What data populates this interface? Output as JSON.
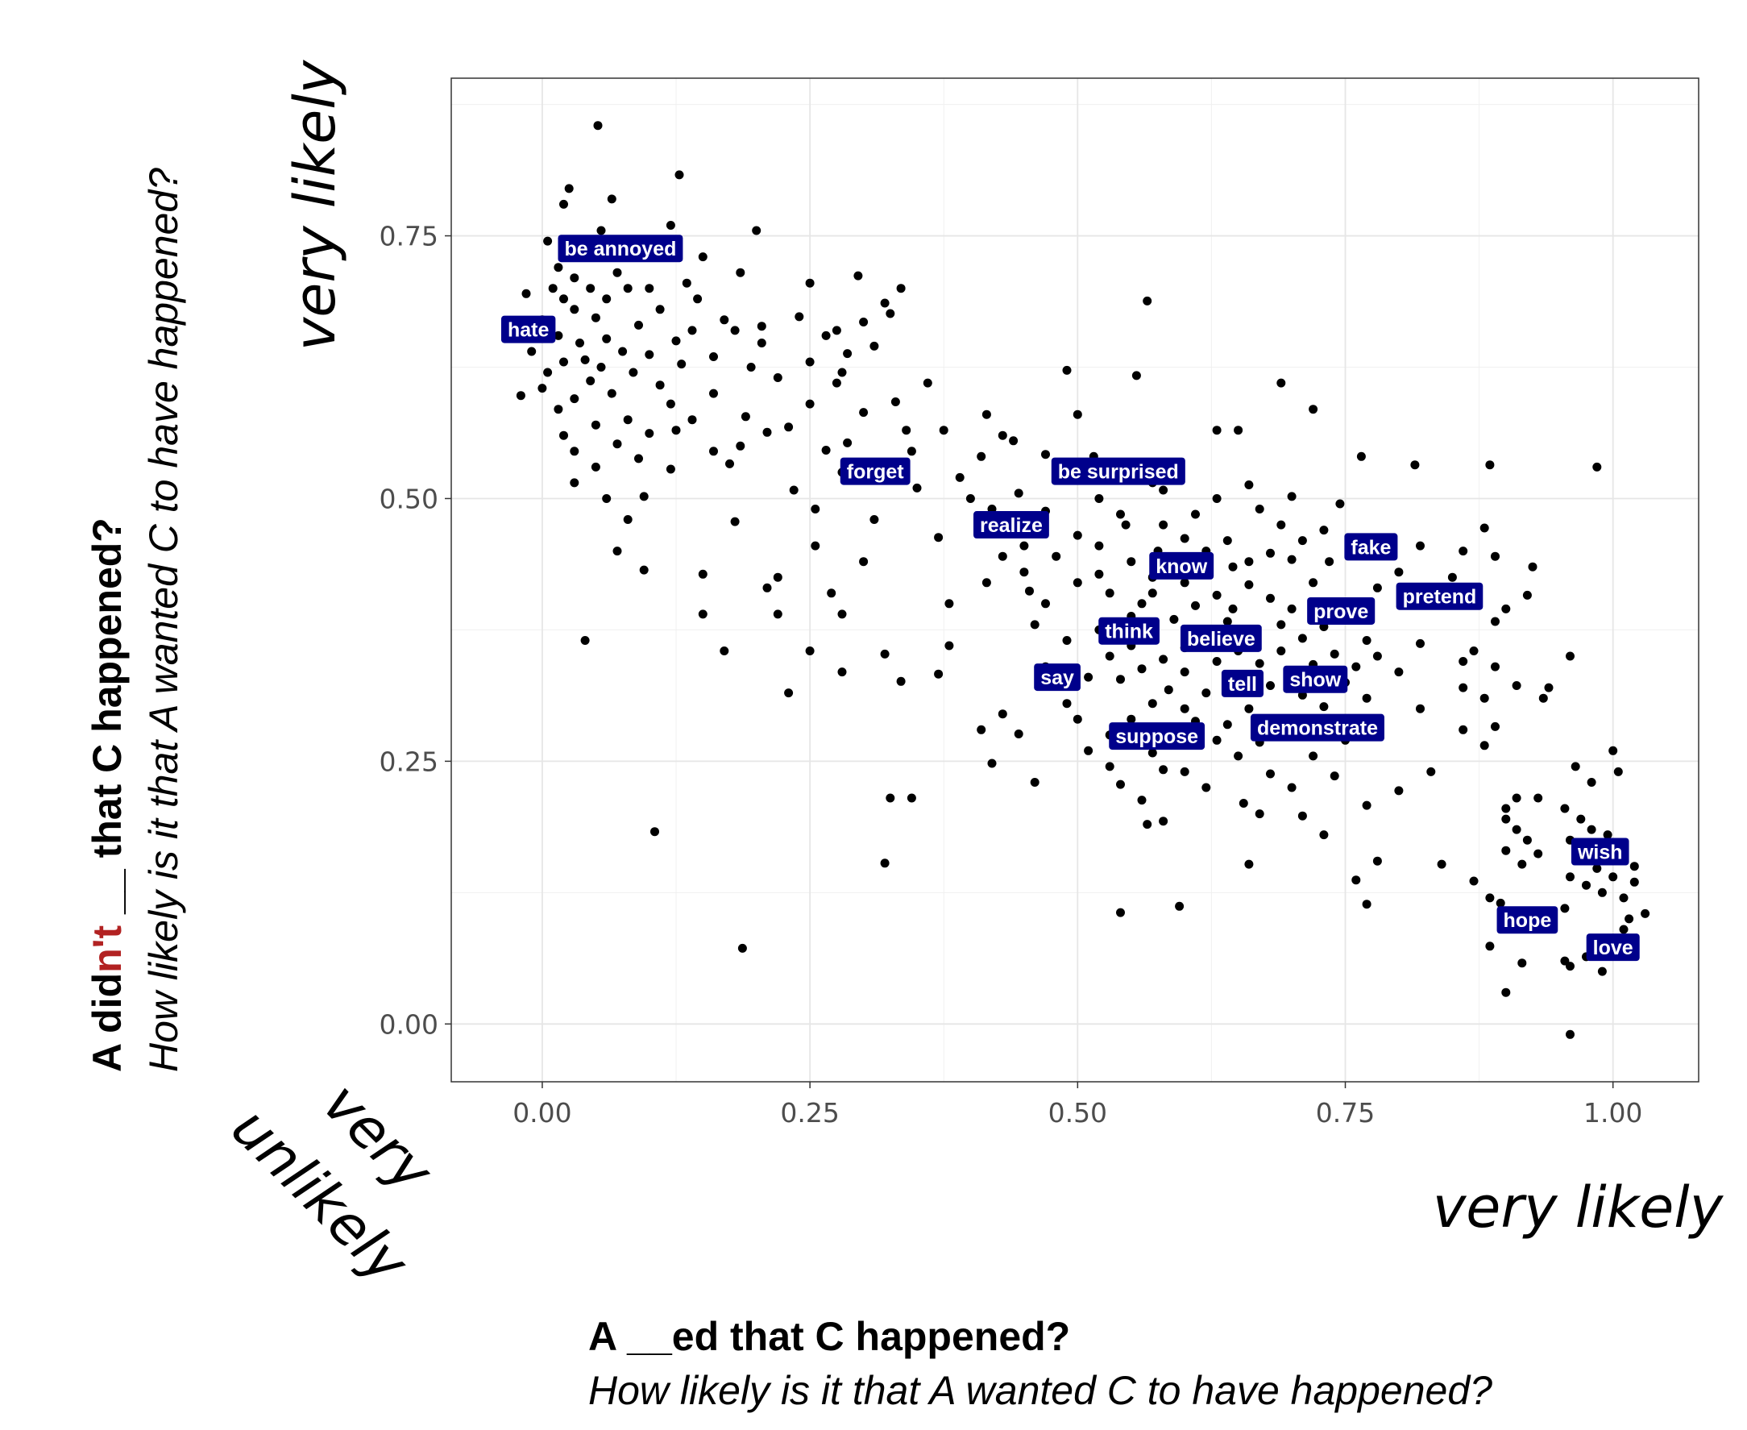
{
  "chart_data": {
    "type": "scatter",
    "xlim": [
      -0.085,
      1.08
    ],
    "ylim": [
      -0.055,
      0.9
    ],
    "x_ticks": [
      {
        "value": 0.0,
        "label": "0.00"
      },
      {
        "value": 0.25,
        "label": "0.25"
      },
      {
        "value": 0.5,
        "label": "0.50"
      },
      {
        "value": 0.75,
        "label": "0.75"
      },
      {
        "value": 1.0,
        "label": "1.00"
      }
    ],
    "y_ticks": [
      {
        "value": 0.0,
        "label": "0.00"
      },
      {
        "value": 0.25,
        "label": "0.25"
      },
      {
        "value": 0.5,
        "label": "0.50"
      },
      {
        "value": 0.75,
        "label": "0.75"
      }
    ],
    "grid": true,
    "x_annotation_high": "very likely",
    "y_annotation_high": "very likely",
    "corner_annotation": [
      "very",
      "unlikely"
    ],
    "xlabel": {
      "line1": "A __ed that C happened?",
      "line2": "How likely is it that A wanted C to have happened?"
    },
    "ylabel": {
      "line1_parts": [
        "A did",
        "n't",
        " __ that C happened?"
      ],
      "line1_accent": "#b22222",
      "line2": "How likely is it that A wanted C to have happened?"
    },
    "label_color": "#00008b",
    "labels": [
      {
        "text": "be annoyed",
        "x": 0.073,
        "y": 0.738
      },
      {
        "text": "hate",
        "x": -0.013,
        "y": 0.661
      },
      {
        "text": "forget",
        "x": 0.311,
        "y": 0.526
      },
      {
        "text": "be surprised",
        "x": 0.538,
        "y": 0.526
      },
      {
        "text": "realize",
        "x": 0.438,
        "y": 0.475
      },
      {
        "text": "know",
        "x": 0.597,
        "y": 0.436
      },
      {
        "text": "fake",
        "x": 0.774,
        "y": 0.454
      },
      {
        "text": "pretend",
        "x": 0.838,
        "y": 0.407
      },
      {
        "text": "prove",
        "x": 0.746,
        "y": 0.393
      },
      {
        "text": "think",
        "x": 0.548,
        "y": 0.374
      },
      {
        "text": "believe",
        "x": 0.634,
        "y": 0.367
      },
      {
        "text": "say",
        "x": 0.481,
        "y": 0.33
      },
      {
        "text": "tell",
        "x": 0.654,
        "y": 0.324
      },
      {
        "text": "show",
        "x": 0.722,
        "y": 0.328
      },
      {
        "text": "demonstrate",
        "x": 0.724,
        "y": 0.282
      },
      {
        "text": "suppose",
        "x": 0.574,
        "y": 0.274
      },
      {
        "text": "wish",
        "x": 0.988,
        "y": 0.164
      },
      {
        "text": "hope",
        "x": 0.92,
        "y": 0.099
      },
      {
        "text": "love",
        "x": 1.0,
        "y": 0.073
      }
    ],
    "points": [
      [
        0.052,
        0.855
      ],
      [
        0.128,
        0.808
      ],
      [
        0.025,
        0.795
      ],
      [
        0.065,
        0.785
      ],
      [
        0.02,
        0.78
      ],
      [
        0.2,
        0.755
      ],
      [
        0.055,
        0.755
      ],
      [
        0.12,
        0.76
      ],
      [
        0.005,
        0.745
      ],
      [
        0.04,
        0.735
      ],
      [
        0.15,
        0.73
      ],
      [
        0.015,
        0.72
      ],
      [
        0.085,
        0.735
      ],
      [
        0.03,
        0.71
      ],
      [
        0.07,
        0.715
      ],
      [
        0.295,
        0.712
      ],
      [
        0.25,
        0.705
      ],
      [
        0.185,
        0.715
      ],
      [
        0.335,
        0.7
      ],
      [
        0.08,
        0.7
      ],
      [
        0.01,
        0.7
      ],
      [
        0.045,
        0.7
      ],
      [
        0.1,
        0.7
      ],
      [
        0.135,
        0.705
      ],
      [
        0.145,
        0.69
      ],
      [
        0.06,
        0.69
      ],
      [
        -0.015,
        0.695
      ],
      [
        0.02,
        0.69
      ],
      [
        0.11,
        0.68
      ],
      [
        0.03,
        0.68
      ],
      [
        0.565,
        0.688
      ],
      [
        0.32,
        0.686
      ],
      [
        0.325,
        0.676
      ],
      [
        0.24,
        0.673
      ],
      [
        0.17,
        0.67
      ],
      [
        0.3,
        0.668
      ],
      [
        0.205,
        0.664
      ],
      [
        0.09,
        0.665
      ],
      [
        0.0,
        0.67
      ],
      [
        0.05,
        0.672
      ],
      [
        0.14,
        0.66
      ],
      [
        0.18,
        0.66
      ],
      [
        0.275,
        0.66
      ],
      [
        0.265,
        0.655
      ],
      [
        0.31,
        0.645
      ],
      [
        0.125,
        0.65
      ],
      [
        0.06,
        0.652
      ],
      [
        0.035,
        0.648
      ],
      [
        0.015,
        0.655
      ],
      [
        0.205,
        0.648
      ],
      [
        0.075,
        0.64
      ],
      [
        0.1,
        0.637
      ],
      [
        0.04,
        0.632
      ],
      [
        -0.01,
        0.64
      ],
      [
        0.02,
        0.63
      ],
      [
        0.285,
        0.638
      ],
      [
        0.16,
        0.635
      ],
      [
        0.25,
        0.63
      ],
      [
        0.195,
        0.625
      ],
      [
        0.13,
        0.628
      ],
      [
        0.055,
        0.625
      ],
      [
        0.085,
        0.62
      ],
      [
        0.005,
        0.62
      ],
      [
        0.22,
        0.615
      ],
      [
        0.28,
        0.62
      ],
      [
        0.49,
        0.622
      ],
      [
        0.555,
        0.617
      ],
      [
        0.275,
        0.61
      ],
      [
        0.045,
        0.612
      ],
      [
        0.11,
        0.608
      ],
      [
        0.0,
        0.605
      ],
      [
        0.36,
        0.61
      ],
      [
        0.69,
        0.61
      ],
      [
        0.16,
        0.6
      ],
      [
        0.065,
        0.6
      ],
      [
        -0.02,
        0.598
      ],
      [
        0.03,
        0.595
      ],
      [
        0.25,
        0.59
      ],
      [
        0.33,
        0.592
      ],
      [
        0.12,
        0.59
      ],
      [
        0.015,
        0.585
      ],
      [
        0.415,
        0.58
      ],
      [
        0.3,
        0.582
      ],
      [
        0.19,
        0.578
      ],
      [
        0.08,
        0.575
      ],
      [
        0.14,
        0.575
      ],
      [
        0.5,
        0.58
      ],
      [
        0.72,
        0.585
      ],
      [
        0.05,
        0.57
      ],
      [
        0.125,
        0.565
      ],
      [
        0.23,
        0.568
      ],
      [
        0.34,
        0.565
      ],
      [
        0.21,
        0.563
      ],
      [
        0.375,
        0.565
      ],
      [
        0.1,
        0.562
      ],
      [
        0.63,
        0.565
      ],
      [
        0.65,
        0.565
      ],
      [
        0.43,
        0.56
      ],
      [
        0.02,
        0.56
      ],
      [
        0.44,
        0.555
      ],
      [
        0.285,
        0.553
      ],
      [
        0.07,
        0.552
      ],
      [
        0.185,
        0.55
      ],
      [
        0.265,
        0.546
      ],
      [
        0.345,
        0.545
      ],
      [
        0.03,
        0.545
      ],
      [
        0.16,
        0.545
      ],
      [
        0.41,
        0.54
      ],
      [
        0.47,
        0.542
      ],
      [
        0.765,
        0.54
      ],
      [
        0.515,
        0.54
      ],
      [
        0.09,
        0.538
      ],
      [
        0.175,
        0.533
      ],
      [
        0.05,
        0.53
      ],
      [
        0.815,
        0.532
      ],
      [
        0.885,
        0.532
      ],
      [
        0.985,
        0.53
      ],
      [
        0.12,
        0.528
      ],
      [
        0.28,
        0.525
      ],
      [
        0.39,
        0.52
      ],
      [
        0.35,
        0.51
      ],
      [
        0.57,
        0.515
      ],
      [
        0.66,
        0.513
      ],
      [
        0.03,
        0.515
      ],
      [
        0.235,
        0.508
      ],
      [
        0.58,
        0.508
      ],
      [
        0.095,
        0.502
      ],
      [
        0.06,
        0.5
      ],
      [
        0.4,
        0.5
      ],
      [
        0.445,
        0.505
      ],
      [
        0.63,
        0.5
      ],
      [
        0.52,
        0.5
      ],
      [
        0.7,
        0.502
      ],
      [
        0.745,
        0.495
      ],
      [
        0.67,
        0.49
      ],
      [
        0.255,
        0.49
      ],
      [
        0.42,
        0.49
      ],
      [
        0.47,
        0.488
      ],
      [
        0.54,
        0.485
      ],
      [
        0.61,
        0.485
      ],
      [
        0.18,
        0.478
      ],
      [
        0.31,
        0.48
      ],
      [
        0.08,
        0.48
      ],
      [
        0.545,
        0.475
      ],
      [
        0.58,
        0.475
      ],
      [
        0.69,
        0.475
      ],
      [
        0.73,
        0.47
      ],
      [
        0.88,
        0.472
      ],
      [
        0.44,
        0.468
      ],
      [
        0.5,
        0.465
      ],
      [
        0.37,
        0.463
      ],
      [
        0.6,
        0.462
      ],
      [
        0.64,
        0.46
      ],
      [
        0.71,
        0.46
      ],
      [
        0.82,
        0.455
      ],
      [
        0.255,
        0.455
      ],
      [
        0.45,
        0.455
      ],
      [
        0.52,
        0.455
      ],
      [
        0.76,
        0.455
      ],
      [
        0.575,
        0.45
      ],
      [
        0.62,
        0.45
      ],
      [
        0.68,
        0.448
      ],
      [
        0.86,
        0.45
      ],
      [
        0.07,
        0.45
      ],
      [
        0.43,
        0.445
      ],
      [
        0.48,
        0.445
      ],
      [
        0.66,
        0.44
      ],
      [
        0.7,
        0.442
      ],
      [
        0.735,
        0.44
      ],
      [
        0.89,
        0.445
      ],
      [
        0.3,
        0.44
      ],
      [
        0.55,
        0.44
      ],
      [
        0.59,
        0.438
      ],
      [
        0.61,
        0.433
      ],
      [
        0.645,
        0.435
      ],
      [
        0.925,
        0.435
      ],
      [
        0.45,
        0.43
      ],
      [
        0.52,
        0.428
      ],
      [
        0.57,
        0.425
      ],
      [
        0.8,
        0.43
      ],
      [
        0.095,
        0.432
      ],
      [
        0.15,
        0.428
      ],
      [
        0.22,
        0.425
      ],
      [
        0.85,
        0.425
      ],
      [
        0.415,
        0.42
      ],
      [
        0.5,
        0.42
      ],
      [
        0.6,
        0.42
      ],
      [
        0.66,
        0.418
      ],
      [
        0.72,
        0.42
      ],
      [
        0.78,
        0.415
      ],
      [
        0.21,
        0.415
      ],
      [
        0.27,
        0.41
      ],
      [
        0.455,
        0.412
      ],
      [
        0.53,
        0.41
      ],
      [
        0.57,
        0.41
      ],
      [
        0.63,
        0.408
      ],
      [
        0.68,
        0.405
      ],
      [
        0.92,
        0.408
      ],
      [
        0.38,
        0.4
      ],
      [
        0.47,
        0.4
      ],
      [
        0.56,
        0.4
      ],
      [
        0.61,
        0.398
      ],
      [
        0.645,
        0.395
      ],
      [
        0.7,
        0.395
      ],
      [
        0.75,
        0.392
      ],
      [
        0.9,
        0.395
      ],
      [
        0.15,
        0.39
      ],
      [
        0.22,
        0.39
      ],
      [
        0.28,
        0.39
      ],
      [
        0.55,
        0.388
      ],
      [
        0.59,
        0.385
      ],
      [
        0.64,
        0.383
      ],
      [
        0.69,
        0.38
      ],
      [
        0.73,
        0.378
      ],
      [
        0.89,
        0.383
      ],
      [
        0.46,
        0.38
      ],
      [
        0.52,
        0.375
      ],
      [
        0.57,
        0.372
      ],
      [
        0.62,
        0.37
      ],
      [
        0.66,
        0.368
      ],
      [
        0.71,
        0.367
      ],
      [
        0.77,
        0.365
      ],
      [
        0.82,
        0.362
      ],
      [
        0.04,
        0.365
      ],
      [
        0.49,
        0.365
      ],
      [
        0.55,
        0.36
      ],
      [
        0.6,
        0.358
      ],
      [
        0.65,
        0.355
      ],
      [
        0.69,
        0.355
      ],
      [
        0.74,
        0.352
      ],
      [
        0.78,
        0.35
      ],
      [
        0.87,
        0.355
      ],
      [
        0.17,
        0.355
      ],
      [
        0.25,
        0.355
      ],
      [
        0.38,
        0.36
      ],
      [
        0.32,
        0.352
      ],
      [
        0.53,
        0.35
      ],
      [
        0.58,
        0.347
      ],
      [
        0.63,
        0.345
      ],
      [
        0.67,
        0.343
      ],
      [
        0.72,
        0.342
      ],
      [
        0.76,
        0.34
      ],
      [
        0.86,
        0.345
      ],
      [
        0.96,
        0.35
      ],
      [
        0.47,
        0.34
      ],
      [
        0.56,
        0.338
      ],
      [
        0.6,
        0.335
      ],
      [
        0.7,
        0.332
      ],
      [
        0.8,
        0.335
      ],
      [
        0.89,
        0.34
      ],
      [
        0.28,
        0.335
      ],
      [
        0.37,
        0.333
      ],
      [
        0.51,
        0.33
      ],
      [
        0.54,
        0.328
      ],
      [
        0.64,
        0.325
      ],
      [
        0.68,
        0.322
      ],
      [
        0.75,
        0.325
      ],
      [
        0.86,
        0.32
      ],
      [
        0.91,
        0.322
      ],
      [
        0.94,
        0.32
      ],
      [
        0.335,
        0.326
      ],
      [
        0.585,
        0.318
      ],
      [
        0.62,
        0.315
      ],
      [
        0.71,
        0.313
      ],
      [
        0.77,
        0.31
      ],
      [
        0.88,
        0.31
      ],
      [
        0.935,
        0.31
      ],
      [
        0.23,
        0.315
      ],
      [
        0.49,
        0.305
      ],
      [
        0.57,
        0.305
      ],
      [
        0.6,
        0.3
      ],
      [
        0.66,
        0.3
      ],
      [
        0.73,
        0.302
      ],
      [
        0.82,
        0.3
      ],
      [
        0.43,
        0.295
      ],
      [
        0.5,
        0.29
      ],
      [
        0.55,
        0.29
      ],
      [
        0.61,
        0.288
      ],
      [
        0.64,
        0.285
      ],
      [
        0.7,
        0.285
      ],
      [
        0.78,
        0.285
      ],
      [
        0.86,
        0.28
      ],
      [
        0.89,
        0.283
      ],
      [
        0.41,
        0.28
      ],
      [
        0.53,
        0.275
      ],
      [
        0.59,
        0.272
      ],
      [
        0.63,
        0.27
      ],
      [
        0.67,
        0.268
      ],
      [
        0.75,
        0.27
      ],
      [
        0.88,
        0.265
      ],
      [
        0.445,
        0.276
      ],
      [
        0.51,
        0.26
      ],
      [
        0.57,
        0.258
      ],
      [
        0.65,
        0.255
      ],
      [
        0.72,
        0.255
      ],
      [
        0.42,
        0.248
      ],
      [
        0.53,
        0.245
      ],
      [
        0.58,
        0.242
      ],
      [
        0.6,
        0.24
      ],
      [
        0.68,
        0.238
      ],
      [
        0.74,
        0.236
      ],
      [
        0.83,
        0.24
      ],
      [
        0.46,
        0.23
      ],
      [
        0.54,
        0.228
      ],
      [
        0.62,
        0.225
      ],
      [
        0.7,
        0.225
      ],
      [
        0.8,
        0.222
      ],
      [
        0.91,
        0.215
      ],
      [
        0.93,
        0.215
      ],
      [
        0.56,
        0.213
      ],
      [
        0.655,
        0.21
      ],
      [
        0.77,
        0.208
      ],
      [
        0.9,
        0.205
      ],
      [
        0.955,
        0.205
      ],
      [
        0.325,
        0.215
      ],
      [
        0.345,
        0.215
      ],
      [
        0.67,
        0.2
      ],
      [
        0.71,
        0.198
      ],
      [
        0.9,
        0.195
      ],
      [
        0.97,
        0.195
      ],
      [
        0.565,
        0.19
      ],
      [
        0.58,
        0.193
      ],
      [
        0.73,
        0.18
      ],
      [
        0.91,
        0.185
      ],
      [
        0.98,
        0.185
      ],
      [
        0.105,
        0.183
      ],
      [
        0.92,
        0.175
      ],
      [
        0.96,
        0.175
      ],
      [
        0.995,
        0.18
      ],
      [
        0.9,
        0.165
      ],
      [
        0.93,
        0.162
      ],
      [
        1.005,
        0.165
      ],
      [
        0.32,
        0.153
      ],
      [
        0.66,
        0.152
      ],
      [
        0.78,
        0.155
      ],
      [
        0.915,
        0.152
      ],
      [
        0.985,
        0.148
      ],
      [
        1.02,
        0.15
      ],
      [
        0.84,
        0.152
      ],
      [
        0.96,
        0.14
      ],
      [
        1.0,
        0.14
      ],
      [
        0.76,
        0.137
      ],
      [
        0.87,
        0.136
      ],
      [
        0.975,
        0.132
      ],
      [
        1.02,
        0.135
      ],
      [
        0.885,
        0.12
      ],
      [
        0.99,
        0.125
      ],
      [
        1.01,
        0.12
      ],
      [
        0.54,
        0.106
      ],
      [
        0.595,
        0.112
      ],
      [
        0.77,
        0.114
      ],
      [
        0.895,
        0.115
      ],
      [
        0.955,
        0.11
      ],
      [
        1.015,
        0.1
      ],
      [
        1.03,
        0.105
      ],
      [
        0.94,
        0.095
      ],
      [
        1.01,
        0.09
      ],
      [
        0.885,
        0.074
      ],
      [
        0.915,
        0.058
      ],
      [
        0.955,
        0.06
      ],
      [
        0.975,
        0.064
      ],
      [
        0.96,
        0.055
      ],
      [
        0.99,
        0.05
      ],
      [
        0.187,
        0.072
      ],
      [
        0.9,
        0.03
      ],
      [
        0.96,
        -0.01
      ],
      [
        1.0,
        0.26
      ],
      [
        0.98,
        0.23
      ],
      [
        0.965,
        0.245
      ],
      [
        1.005,
        0.24
      ]
    ]
  }
}
